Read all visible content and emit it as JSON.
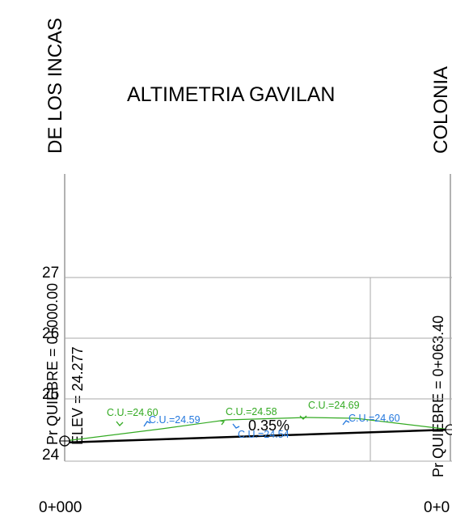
{
  "title": "ALTIMETRIA GAVILAN",
  "streets": {
    "left": "DE LOS INCAS",
    "right": "COLONIA"
  },
  "breakpoints": {
    "start": {
      "label": "Pr QUIEBRE = 0+000.00",
      "elev": "ELEV =  24.277"
    },
    "end": {
      "label": "Pr QUIEBRE = 0+063.40"
    }
  },
  "axis": {
    "y_ticks": [
      "27",
      "26",
      "25",
      "24"
    ],
    "x_ticks": [
      "0+000",
      "0+0"
    ]
  },
  "grade": "0.35%",
  "annotations": {
    "green": [
      {
        "text": "C.U.=24.60",
        "marker": "arrow-icon"
      },
      {
        "text": "C.U.=24.58",
        "marker": "arrow-icon"
      },
      {
        "text": "C.U.=24.69",
        "marker": "arrow-icon"
      }
    ],
    "blue": [
      {
        "text": "C.U.=24.59",
        "marker": "arrow-icon"
      },
      {
        "text": "C.U.=24.54",
        "marker": "arrow-icon"
      },
      {
        "text": "C.U.=24.60",
        "marker": "arrow-icon"
      }
    ]
  },
  "colors": {
    "green": "#33aa22",
    "blue": "#2277dd",
    "grid": "#aaaaaa",
    "profile": "#000000"
  }
}
